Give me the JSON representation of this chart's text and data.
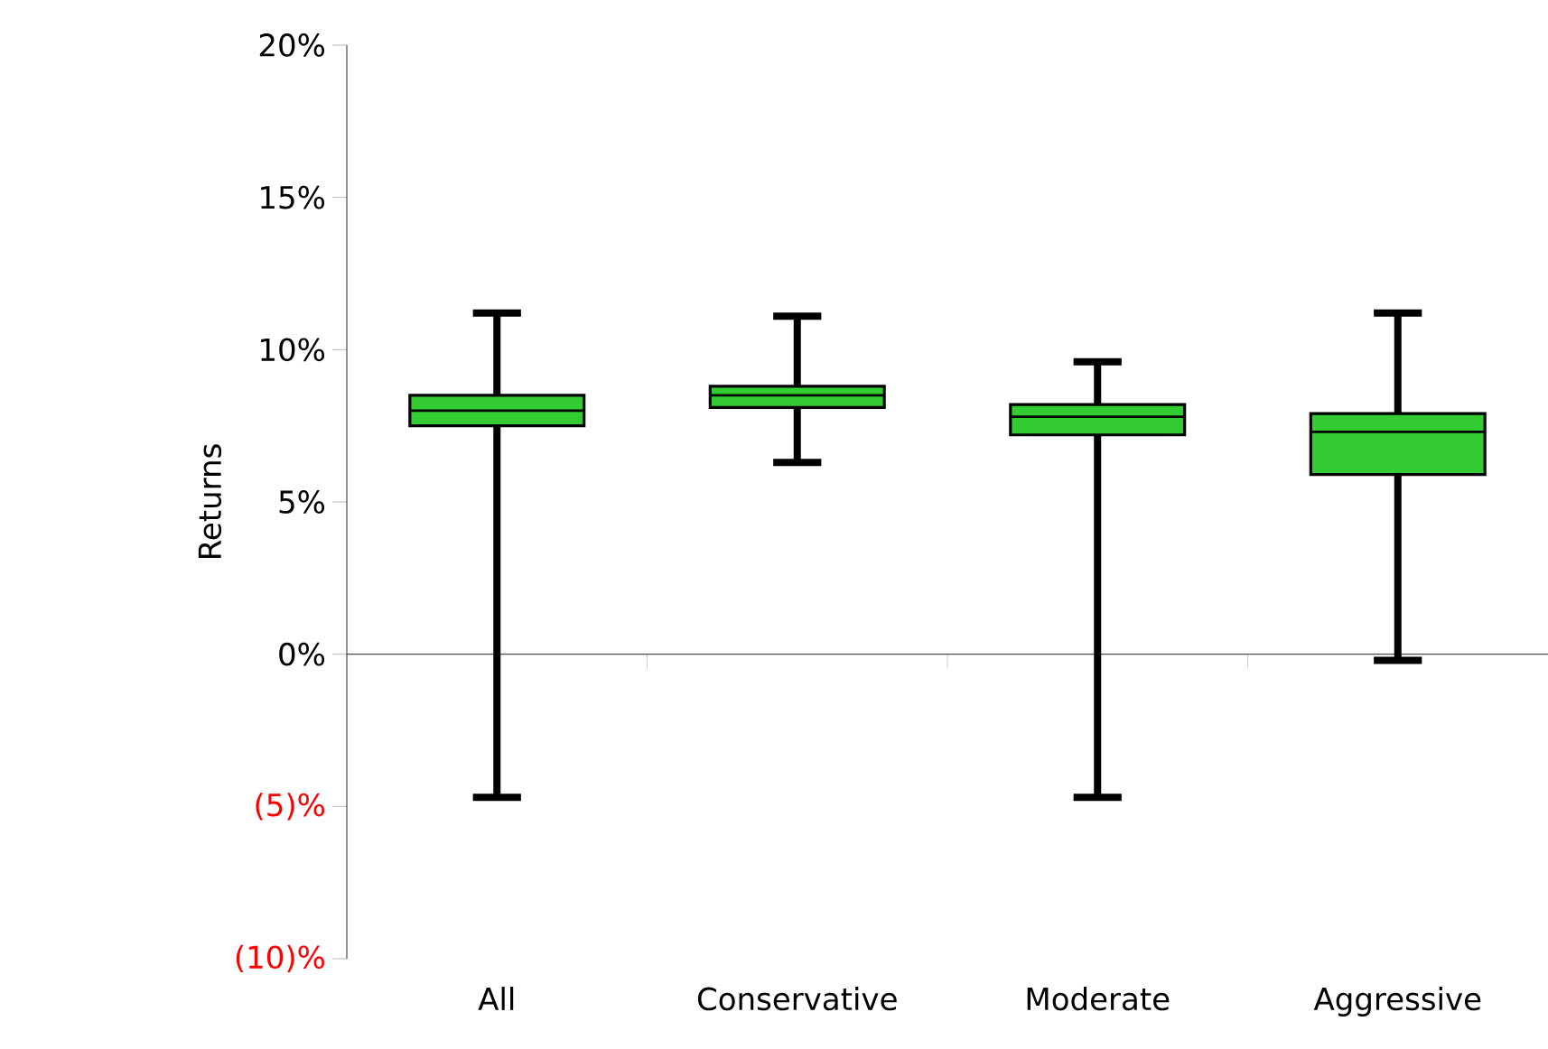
{
  "chart_data": {
    "type": "box",
    "ylabel": "Returns",
    "categories": [
      "All",
      "Conservative",
      "Moderate",
      "Aggressive"
    ],
    "color": "#33cc33",
    "boxes": [
      {
        "low": -4.7,
        "q1": 7.5,
        "median": 8.0,
        "q3": 8.5,
        "high": 11.2
      },
      {
        "low": 6.3,
        "q1": 8.1,
        "median": 8.5,
        "q3": 8.8,
        "high": 11.1
      },
      {
        "low": -4.7,
        "q1": 7.2,
        "median": 7.8,
        "q3": 8.2,
        "high": 9.6
      },
      {
        "low": -0.2,
        "q1": 5.9,
        "median": 7.3,
        "q3": 7.9,
        "high": 11.2
      }
    ],
    "ylim": [
      -10,
      20
    ],
    "yticks": [
      {
        "value": -10,
        "label": "(10)%"
      },
      {
        "value": -5,
        "label": "(5)%"
      },
      {
        "value": 0,
        "label": "0%"
      },
      {
        "value": 5,
        "label": "5%"
      },
      {
        "value": 10,
        "label": "10%"
      },
      {
        "value": 15,
        "label": "15%"
      },
      {
        "value": 20,
        "label": "20%"
      }
    ]
  }
}
